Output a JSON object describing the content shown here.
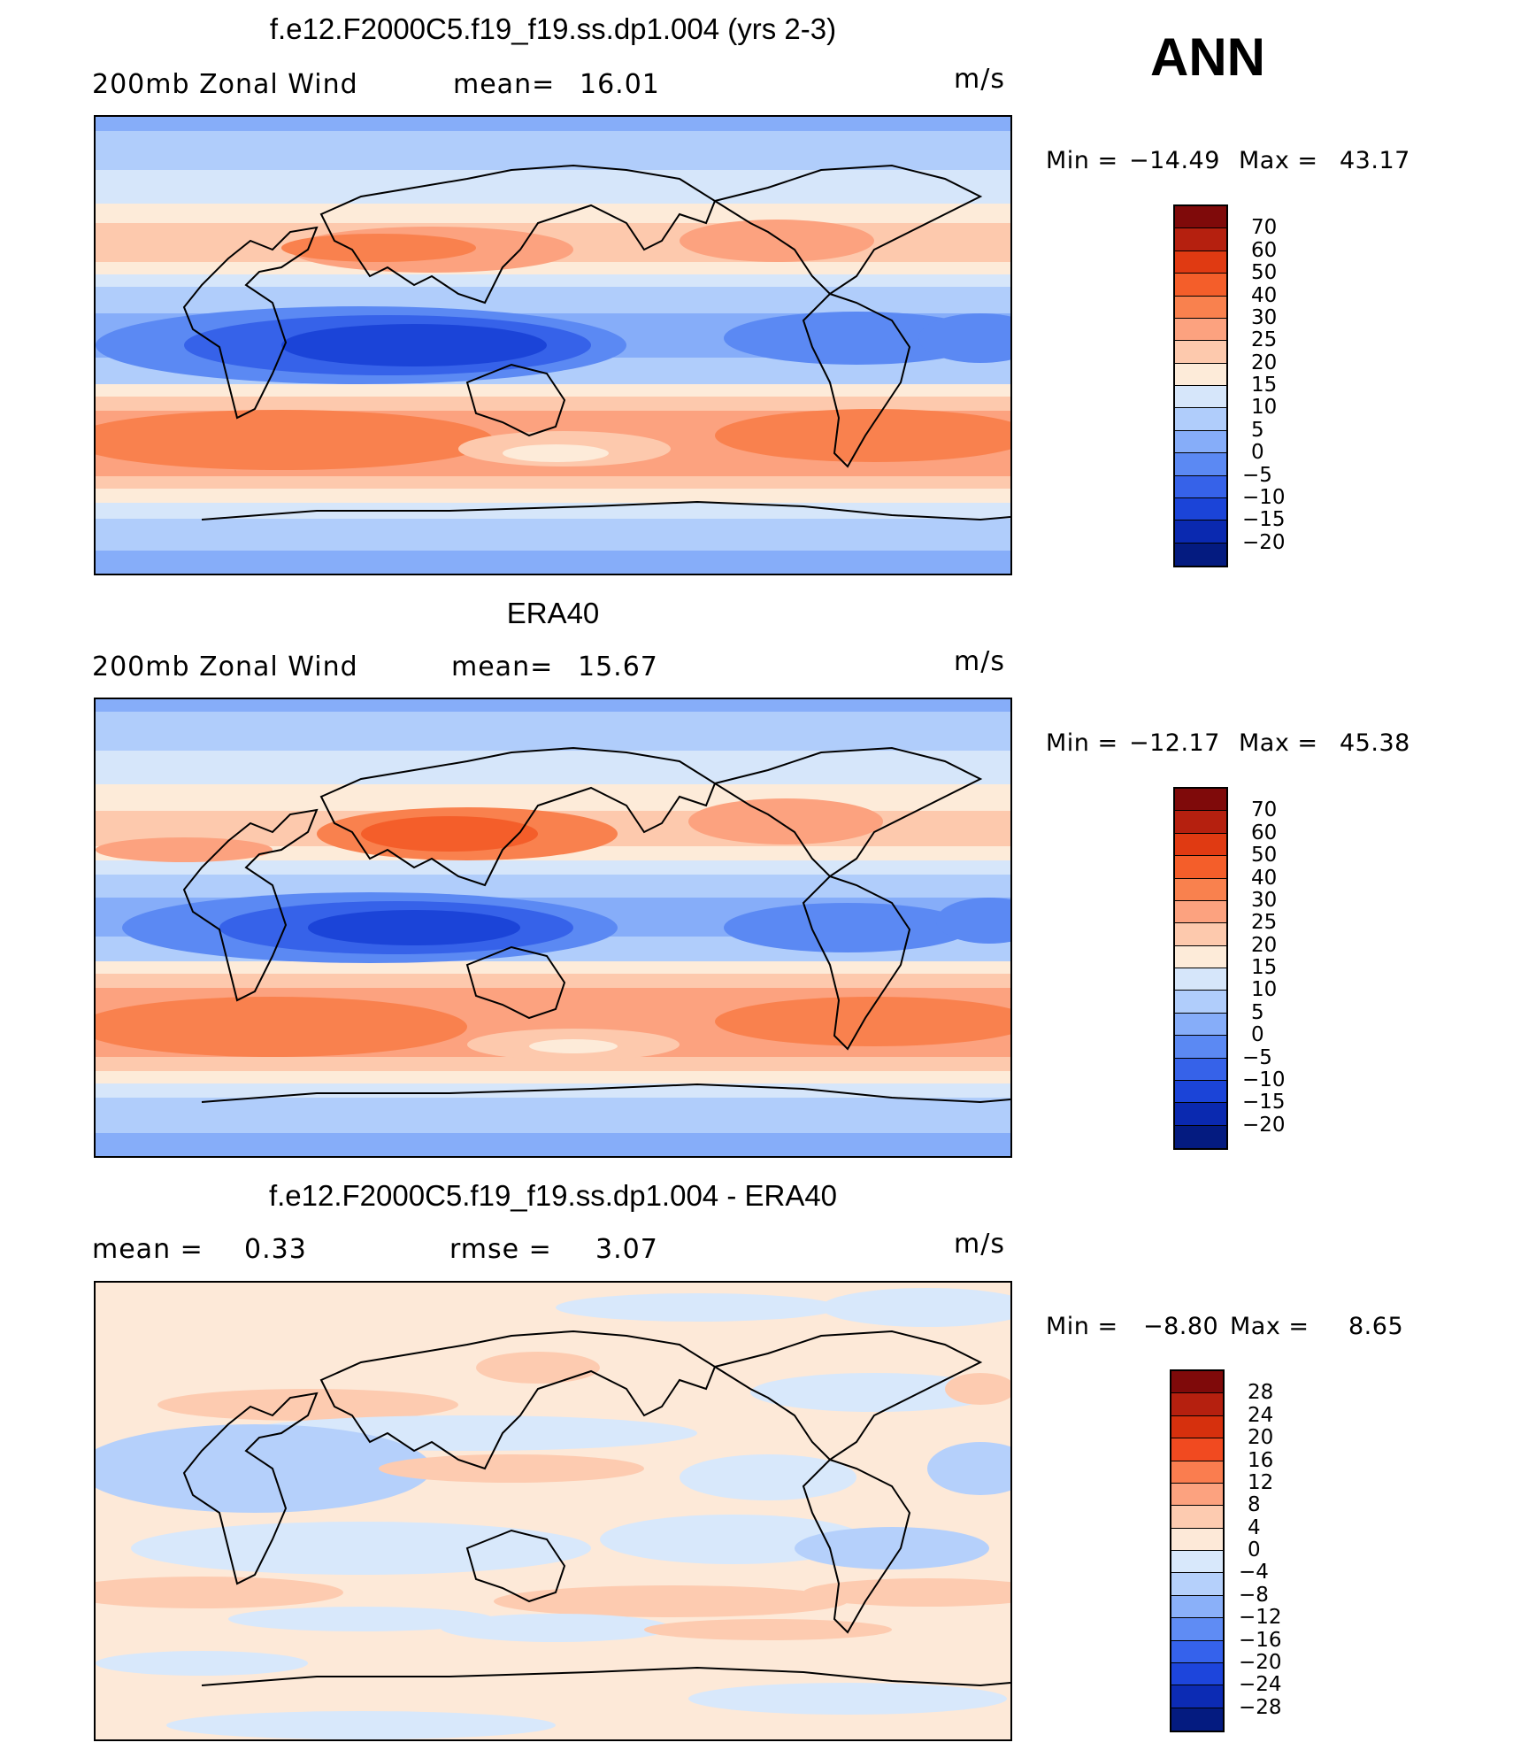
{
  "season": "ANN",
  "panels": [
    {
      "title": "f.e12.F2000C5.f19_f19.ss.dp1.004 (yrs 2-3)",
      "field": "200mb Zonal Wind",
      "stat1_label": "mean=",
      "stat1_value": "16.01",
      "stat2_label": "",
      "stat2_value": "",
      "units": "m/s",
      "min_label": "Min =",
      "min": "−14.49",
      "max_label": "Max =",
      "max": "43.17",
      "colorbar_labels": [
        "70",
        "60",
        "50",
        "40",
        "30",
        "25",
        "20",
        "15",
        "10",
        "5",
        "0",
        "−5",
        "−10",
        "−15",
        "−20"
      ]
    },
    {
      "title": "ERA40",
      "field": "200mb Zonal Wind",
      "stat1_label": "mean=",
      "stat1_value": "15.67",
      "stat2_label": "",
      "stat2_value": "",
      "units": "m/s",
      "min_label": "Min =",
      "min": "−12.17",
      "max_label": "Max =",
      "max": "45.38",
      "colorbar_labels": [
        "70",
        "60",
        "50",
        "40",
        "30",
        "25",
        "20",
        "15",
        "10",
        "5",
        "0",
        "−5",
        "−10",
        "−15",
        "−20"
      ]
    },
    {
      "title": "f.e12.F2000C5.f19_f19.ss.dp1.004 - ERA40",
      "field": "",
      "stat1_label": "mean =",
      "stat1_value": "0.33",
      "stat2_label": "rmse =",
      "stat2_value": "3.07",
      "units": "m/s",
      "min_label": "Min =",
      "min": "−8.80",
      "max_label": "Max =",
      "max": "8.65",
      "colorbar_labels": [
        "28",
        "24",
        "20",
        "16",
        "12",
        "8",
        "4",
        "0",
        "−4",
        "−8",
        "−12",
        "−16",
        "−20",
        "−24",
        "−28"
      ]
    }
  ],
  "colors": {
    "main_scale": [
      "#7f0a0a",
      "#b5200f",
      "#e03a12",
      "#f45e2a",
      "#f9814e",
      "#fca27f",
      "#fdc9ad",
      "#fdebd9",
      "#d6e6fa",
      "#b0cdfb",
      "#86adf9",
      "#5b89f3",
      "#3662e9",
      "#1b44d8",
      "#0a29b0",
      "#041b80"
    ],
    "diff_scale": [
      "#7f0a0a",
      "#b5200f",
      "#d6300d",
      "#f14a20",
      "#fa7d4f",
      "#fca27f",
      "#fdcbb0",
      "#fde9d8",
      "#d8e8fb",
      "#b5d0fb",
      "#8ab0f9",
      "#5f8cf4",
      "#3562ec",
      "#1d45dc",
      "#0c2bb4",
      "#041b80"
    ]
  }
}
